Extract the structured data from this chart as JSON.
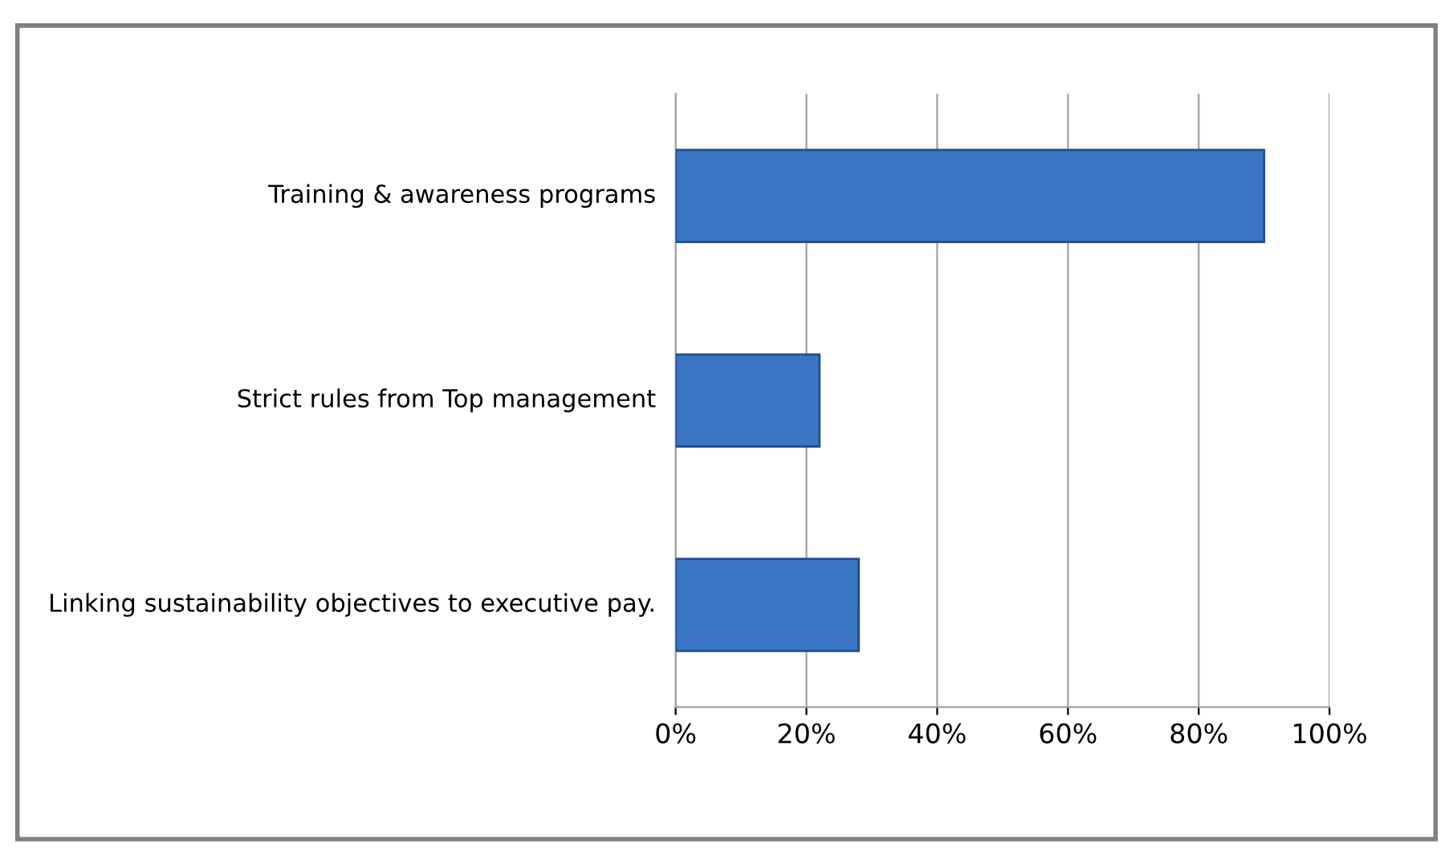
{
  "chart_data": {
    "type": "bar",
    "orientation": "horizontal",
    "categories": [
      "Training & awareness programs",
      "Strict rules from Top management",
      "Linking sustainability objectives to executive pay."
    ],
    "values": [
      90,
      22,
      28
    ],
    "color": "#3a75c4",
    "xlim": [
      0,
      100
    ],
    "xticks": [
      {
        "value": 0,
        "label": "0%"
      },
      {
        "value": 20,
        "label": "20%"
      },
      {
        "value": 40,
        "label": "40%"
      },
      {
        "value": 60,
        "label": "60%"
      },
      {
        "value": 80,
        "label": "80%"
      },
      {
        "value": 100,
        "label": "100%"
      }
    ],
    "grid": "x",
    "legend": false
  }
}
